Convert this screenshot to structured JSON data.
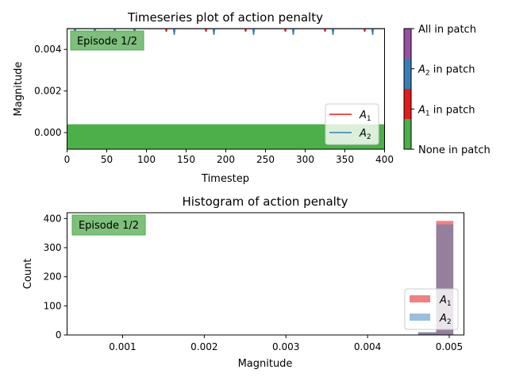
{
  "chart_data": [
    {
      "type": "line",
      "title": "Timeseries plot of action penalty",
      "xlabel": "Timestep",
      "ylabel": "Magnitude",
      "xlim": [
        0,
        400
      ],
      "ylim": [
        -0.0008,
        0.005
      ],
      "xticks": [
        0,
        50,
        100,
        150,
        200,
        250,
        300,
        350,
        400
      ],
      "xtick_labels": [
        "0",
        "50",
        "100",
        "150",
        "200",
        "250",
        "300",
        "350",
        "400"
      ],
      "yticks": [
        0.0,
        0.002,
        0.004
      ],
      "ytick_labels": [
        "0.000",
        "0.002",
        "0.004"
      ],
      "badge": "Episode 1/2",
      "legend": {
        "placement": "lower-right",
        "entries": [
          "A1",
          "A2"
        ]
      },
      "patch_band": {
        "y_range": [
          -0.0008,
          0.0004
        ],
        "x_range": [
          0,
          400
        ],
        "state": "None in patch"
      },
      "colorbar": {
        "labels": [
          "None in patch",
          "A1 in patch",
          "A2 in patch",
          "All in patch"
        ],
        "colors": [
          "#4daf4a",
          "#e41a1c",
          "#377eb8",
          "#984ea3"
        ]
      },
      "series": [
        {
          "name": "A1",
          "color": "#e41a1c",
          "dips_at": [
            35,
            85,
            125,
            175,
            225,
            275,
            325,
            375
          ],
          "base": 0.005,
          "dip_depth": 0.00015
        },
        {
          "name": "A2",
          "color": "#377eb8",
          "dips_at": [
            10,
            35,
            60,
            85,
            135,
            185,
            235,
            285,
            335,
            385
          ],
          "base": 0.005,
          "dip_depth": 0.0003
        }
      ]
    },
    {
      "type": "histogram",
      "title": "Histogram of action penalty",
      "xlabel": "Magnitude",
      "ylabel": "Count",
      "xlim": [
        0.00032,
        0.00518
      ],
      "ylim": [
        0,
        420
      ],
      "xticks": [
        0.001,
        0.002,
        0.003,
        0.004,
        0.005
      ],
      "xtick_labels": [
        "0.001",
        "0.002",
        "0.003",
        "0.004",
        "0.005"
      ],
      "yticks": [
        0,
        100,
        200,
        300,
        400
      ],
      "ytick_labels": [
        "0",
        "100",
        "200",
        "300",
        "400"
      ],
      "badge": "Episode 1/2",
      "legend": {
        "placement": "lower-right",
        "entries": [
          "A1",
          "A2"
        ]
      },
      "series": [
        {
          "name": "A1",
          "color": "#e41a1c",
          "bins": [
            [
              0.00462,
              0.00484,
              8
            ],
            [
              0.00484,
              0.00505,
              392
            ]
          ]
        },
        {
          "name": "A2",
          "color": "#377eb8",
          "bins": [
            [
              0.00462,
              0.00484,
              10
            ],
            [
              0.00484,
              0.00505,
              380
            ]
          ]
        }
      ]
    }
  ]
}
